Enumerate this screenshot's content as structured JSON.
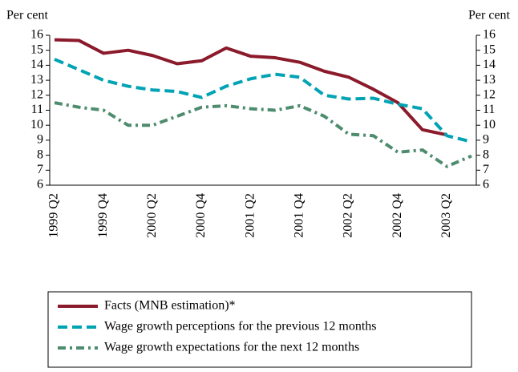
{
  "chart_data": {
    "type": "line",
    "y_label": "Per cent",
    "y2_label": "Per cent",
    "categories": [
      "1999 Q2",
      null,
      "1999 Q4",
      null,
      "2000 Q2",
      null,
      "2000 Q4",
      null,
      "2001 Q2",
      null,
      "2001 Q4",
      null,
      "2002 Q2",
      null,
      "2002 Q4",
      null,
      "2003 Q2",
      null
    ],
    "series": [
      {
        "name": "Facts (MNB estimation)*",
        "color": "#8b1a2b",
        "dash": "solid",
        "values": [
          15.7,
          15.65,
          14.8,
          15.0,
          14.65,
          14.1,
          14.3,
          15.15,
          14.6,
          14.5,
          14.2,
          13.6,
          13.2,
          12.4,
          11.5,
          9.7,
          9.35,
          null
        ]
      },
      {
        "name": "Wage growth perceptions for the previous 12 months",
        "color": "#00a3b4",
        "dash": "dashed",
        "values": [
          14.4,
          13.7,
          13.0,
          12.6,
          12.35,
          12.25,
          11.85,
          12.6,
          13.1,
          13.4,
          13.2,
          12.0,
          11.75,
          11.8,
          11.4,
          11.1,
          9.3,
          8.9
        ]
      },
      {
        "name": "Wage growth expectations for the next 12 months",
        "color": "#4e8c6e",
        "dash": "dashdot",
        "values": [
          11.5,
          11.2,
          11.0,
          10.0,
          10.0,
          10.6,
          11.2,
          11.3,
          11.1,
          11.0,
          11.3,
          10.6,
          9.4,
          9.3,
          8.2,
          8.35,
          7.25,
          7.95
        ]
      }
    ],
    "ylim": [
      6,
      16
    ],
    "yticks": [
      6,
      7,
      8,
      9,
      10,
      11,
      12,
      13,
      14,
      15,
      16
    ],
    "y2lim": [
      6,
      16
    ],
    "y2ticks": [
      6,
      7,
      8,
      9,
      10,
      11,
      12,
      13,
      14,
      15,
      16
    ],
    "grid": false,
    "legend": "bottom"
  }
}
